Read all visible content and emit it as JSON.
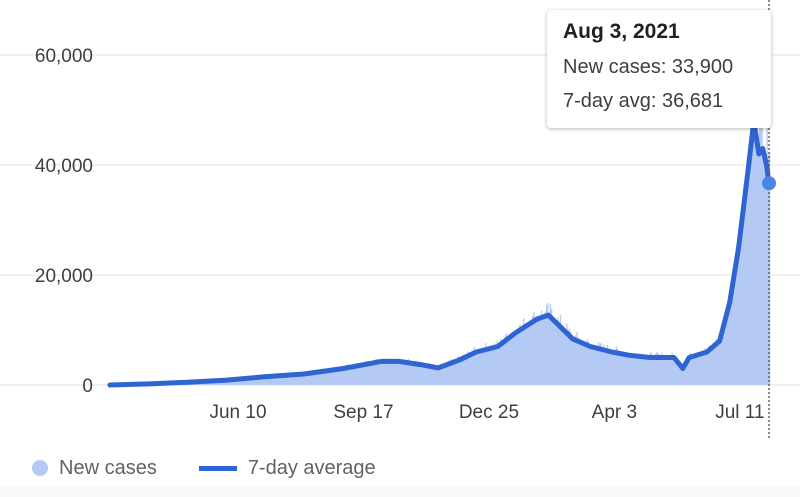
{
  "tooltip": {
    "date": "Aug 3, 2021",
    "new_cases_label": "New cases: 33,900",
    "avg_label": "7-day avg: 36,681"
  },
  "legend": {
    "new_cases": "New cases",
    "avg": "7-day average"
  },
  "colors": {
    "bars": "#b4c9f3",
    "line": "#2f64d3",
    "grid": "#e6e6e6",
    "cursor": "#5f6368"
  },
  "chart_data": {
    "type": "area",
    "ylim": [
      0,
      60000
    ],
    "yticks": [
      0,
      20000,
      40000,
      60000
    ],
    "ytick_labels": [
      "0",
      "20,000",
      "40,000",
      "60,000"
    ],
    "xlim": [
      "2020-03-01",
      "2021-08-03"
    ],
    "xticks": [
      "2020-06-10",
      "2020-09-17",
      "2020-12-25",
      "2021-04-03",
      "2021-07-11"
    ],
    "xtick_labels": [
      "Jun 10",
      "Sep 17",
      "Dec 25",
      "Apr 3",
      "Jul 11"
    ],
    "grid": true,
    "legend_position": "bottom-left",
    "highlight": {
      "date": "2021-08-03",
      "new_cases": 33900,
      "avg": 36681
    },
    "series": [
      {
        "name": "7-day average",
        "points": [
          [
            "2020-03-01",
            0
          ],
          [
            "2020-04-01",
            200
          ],
          [
            "2020-05-01",
            500
          ],
          [
            "2020-06-01",
            900
          ],
          [
            "2020-07-01",
            1500
          ],
          [
            "2020-08-01",
            2000
          ],
          [
            "2020-09-01",
            3000
          ],
          [
            "2020-10-01",
            4300
          ],
          [
            "2020-10-15",
            4300
          ],
          [
            "2020-11-01",
            3700
          ],
          [
            "2020-11-15",
            3100
          ],
          [
            "2020-12-01",
            4500
          ],
          [
            "2020-12-15",
            6000
          ],
          [
            "2021-01-01",
            7000
          ],
          [
            "2021-01-15",
            9500
          ],
          [
            "2021-02-01",
            12000
          ],
          [
            "2021-02-10",
            12700
          ],
          [
            "2021-03-01",
            8400
          ],
          [
            "2021-03-15",
            7000
          ],
          [
            "2021-04-01",
            6000
          ],
          [
            "2021-04-15",
            5400
          ],
          [
            "2021-05-01",
            5000
          ],
          [
            "2021-05-20",
            5000
          ],
          [
            "2021-05-27",
            3000
          ],
          [
            "2021-06-01",
            5000
          ],
          [
            "2021-06-15",
            6000
          ],
          [
            "2021-06-25",
            8000
          ],
          [
            "2021-07-03",
            15000
          ],
          [
            "2021-07-10",
            25000
          ],
          [
            "2021-07-18",
            40000
          ],
          [
            "2021-07-22",
            48000
          ],
          [
            "2021-07-26",
            42000
          ],
          [
            "2021-07-29",
            43000
          ],
          [
            "2021-08-01",
            40000
          ],
          [
            "2021-08-03",
            36681
          ]
        ]
      },
      {
        "name": "New cases"
      }
    ]
  }
}
